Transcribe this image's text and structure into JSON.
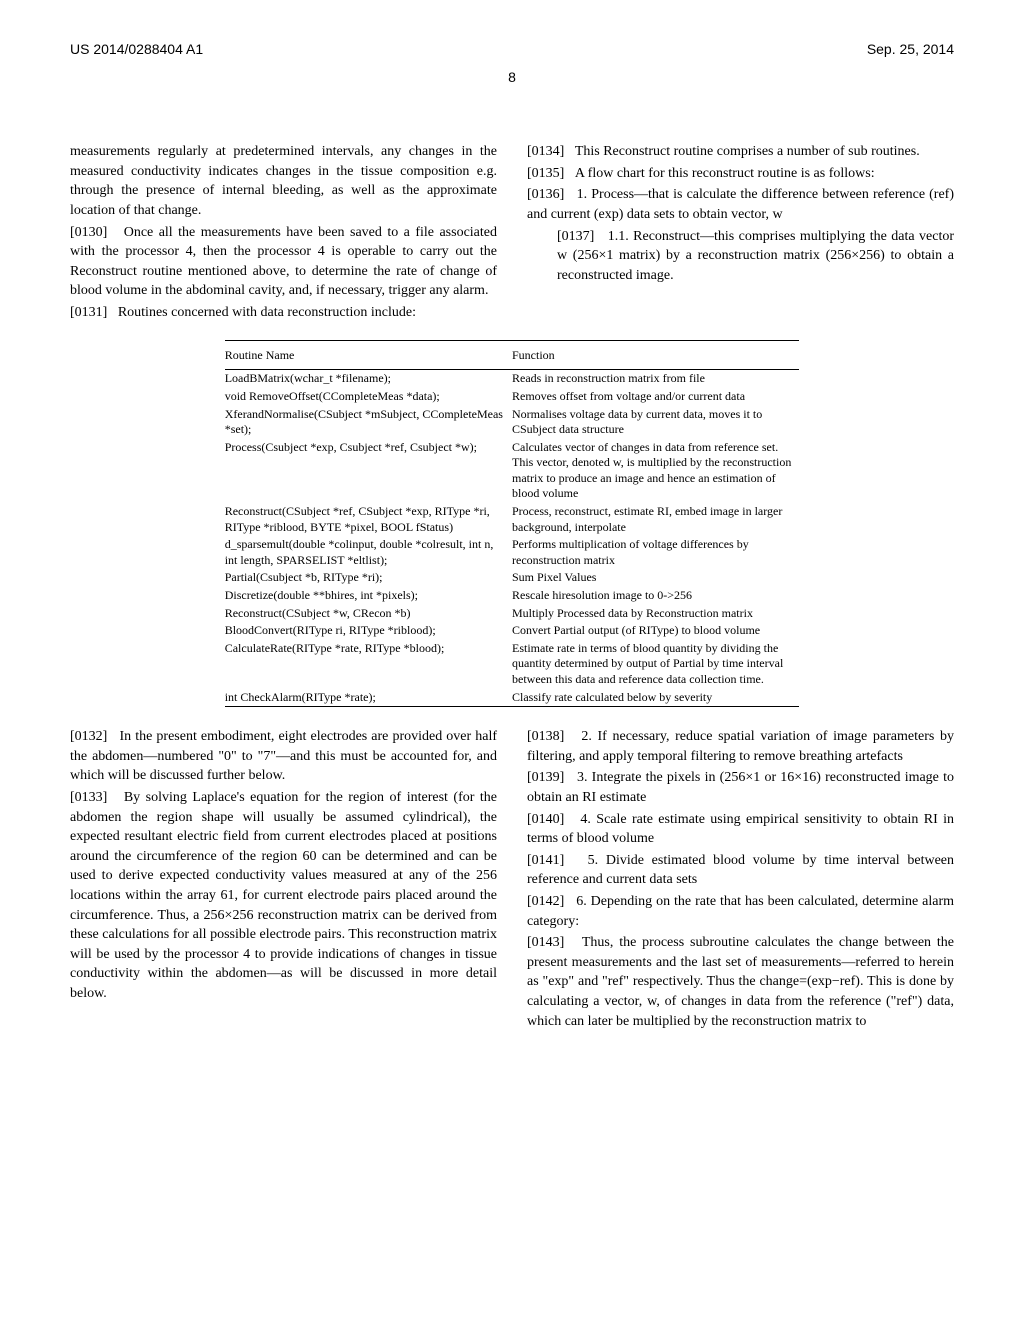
{
  "header": {
    "left": "US 2014/0288404 A1",
    "right": "Sep. 25, 2014",
    "pageNumber": "8"
  },
  "leftColumn": {
    "paragraphs": [
      {
        "text": "measurements regularly at predetermined intervals, any changes in the measured conductivity indicates changes in the tissue composition e.g. through the presence of internal bleeding, as well as the approximate location of that change."
      },
      {
        "num": "[0130]",
        "text": "Once all the measurements have been saved to a file associated with the processor 4, then the processor 4 is operable to carry out the Reconstruct routine mentioned above, to determine the rate of change of blood volume in the abdominal cavity, and, if necessary, trigger any alarm."
      },
      {
        "num": "[0131]",
        "text": "Routines concerned with data reconstruction include:"
      }
    ],
    "paragraphs2": [
      {
        "num": "[0132]",
        "text": "In the present embodiment, eight electrodes are provided over half the abdomen—numbered \"0\" to \"7\"—and this must be accounted for, and which will be discussed further below."
      },
      {
        "num": "[0133]",
        "text": "By solving Laplace's equation for the region of interest (for the abdomen the region shape will usually be assumed cylindrical), the expected resultant electric field from current electrodes placed at positions around the circumference of the region 60 can be determined and can be used to derive expected conductivity values measured at any of the 256 locations within the array 61, for current electrode pairs placed around the circumference. Thus, a 256×256 reconstruction matrix can be derived from these calculations for all possible electrode pairs. This reconstruction matrix will be used by the processor 4 to provide indications of changes in tissue conductivity within the abdomen—as will be discussed in more detail below."
      }
    ]
  },
  "rightColumn": {
    "paragraphs": [
      {
        "num": "[0134]",
        "text": "This Reconstruct routine comprises a number of sub routines."
      },
      {
        "num": "[0135]",
        "text": "A flow chart for this reconstruct routine is as follows:"
      },
      {
        "num": "[0136]",
        "text": "1. Process—that is calculate the difference between reference (ref) and current (exp) data sets to obtain vector, w"
      },
      {
        "num": "[0137]",
        "text": "1.1. Reconstruct—this comprises multiplying the data vector w (256×1 matrix) by a reconstruction matrix (256×256) to obtain a reconstructed image.",
        "sub": true
      }
    ],
    "paragraphs2": [
      {
        "num": "[0138]",
        "text": "2. If necessary, reduce spatial variation of image parameters by filtering, and apply temporal filtering to remove breathing artefacts"
      },
      {
        "num": "[0139]",
        "text": "3. Integrate the pixels in (256×1 or 16×16) reconstructed image to obtain an RI estimate"
      },
      {
        "num": "[0140]",
        "text": "4. Scale rate estimate using empirical sensitivity to obtain RI in terms of blood volume"
      },
      {
        "num": "[0141]",
        "text": "5. Divide estimated blood volume by time interval between reference and current data sets"
      },
      {
        "num": "[0142]",
        "text": "6. Depending on the rate that has been calculated, determine alarm category:"
      },
      {
        "num": "[0143]",
        "text": "Thus, the process subroutine calculates the change between the present measurements and the last set of measurements—referred to herein as \"exp\" and \"ref\" respectively. Thus the change=(exp−ref). This is done by calculating a vector, w, of changes in data from the reference (\"ref\") data, which can later be multiplied by the reconstruction matrix to"
      }
    ]
  },
  "table": {
    "headers": [
      "Routine Name",
      "Function"
    ],
    "rows": [
      [
        "LoadBMatrix(wchar_t *filename);",
        "Reads in reconstruction matrix from file"
      ],
      [
        "void RemoveOffset(CCompleteMeas *data);",
        "Removes offset from voltage and/or current data"
      ],
      [
        "XferandNormalise(CSubject *mSubject, CCompleteMeas *set);",
        "Normalises voltage data by current data, moves it to CSubject data structure"
      ],
      [
        "Process(Csubject *exp, Csubject *ref, Csubject *w);",
        "Calculates vector of changes in data from reference set. This vector, denoted w, is multiplied by the reconstruction matrix to produce an image and hence an estimation of blood volume"
      ],
      [
        "Reconstruct(CSubject *ref, CSubject *exp, RIType *ri, RIType *riblood, BYTE *pixel, BOOL fStatus)",
        "Process, reconstruct, estimate RI, embed image in larger background, interpolate"
      ],
      [
        "d_sparsemult(double *colinput, double *colresult, int n, int length, SPARSELIST *eltlist);",
        "Performs multiplication of voltage differences by reconstruction matrix"
      ],
      [
        "Partial(Csubject *b, RIType *ri);",
        "Sum Pixel Values"
      ],
      [
        "Discretize(double **bhires, int *pixels);",
        "Rescale hiresolution image to 0->256"
      ],
      [
        "Reconstruct(CSubject *w, CRecon *b)",
        "Multiply Processed data by Reconstruction matrix"
      ],
      [
        "BloodConvert(RIType ri, RIType *riblood);",
        "Convert Partial output (of RIType) to blood volume"
      ],
      [
        "CalculateRate(RIType *rate, RIType *blood);",
        "Estimate rate in terms of blood quantity by dividing the quantity determined by output of Partial by time interval between this data and reference data collection time."
      ],
      [
        "int CheckAlarm(RIType *rate);",
        "Classify rate calculated below by severity"
      ]
    ]
  }
}
